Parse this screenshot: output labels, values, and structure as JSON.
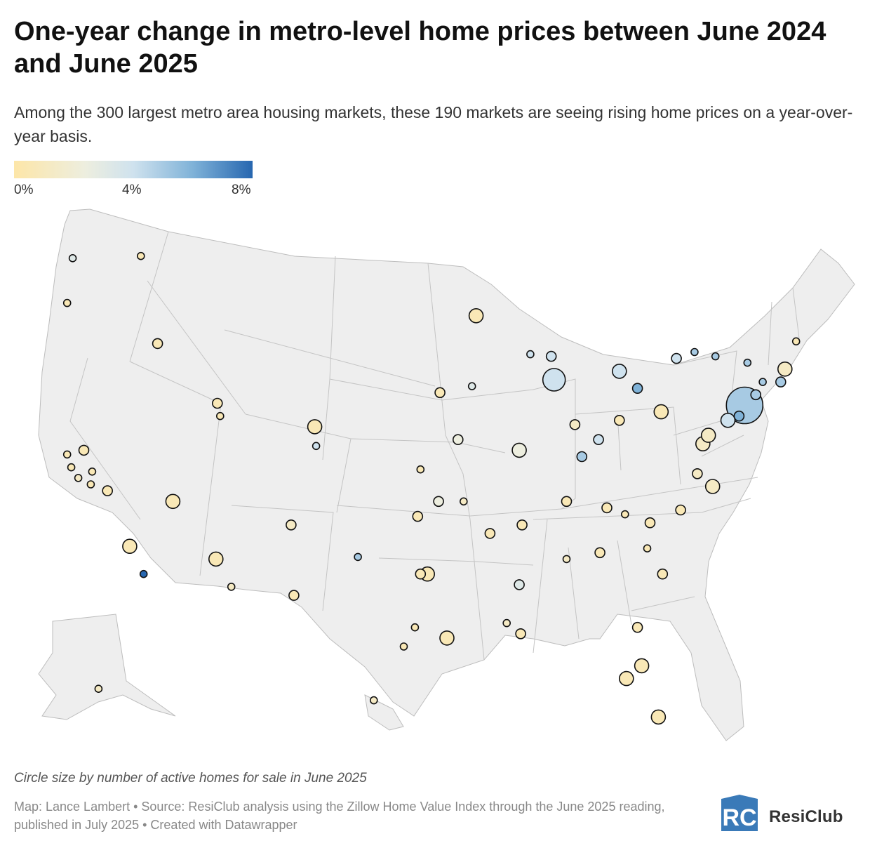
{
  "title": "One-year change in metro-level home prices between June 2024 and June 2025",
  "subtitle": "Among the 300 largest metro area housing markets, these 190 markets are seeing rising home prices on a year-over-year basis.",
  "legend": {
    "labels": [
      "0%",
      "4%",
      "8%"
    ],
    "colors": [
      "#fde6a8",
      "#edeedf",
      "#cfe2ee",
      "#7fb2d8",
      "#2767b0"
    ]
  },
  "size_note": "Circle size by number of active homes for sale in June 2025",
  "credit": "Map: Lance Lambert • Source: ResiClub analysis using the Zillow Home Value Index through the June 2025 reading, published in July 2025 • Created with Datawrapper",
  "brand": {
    "name": "ResiClub",
    "logo_letters": "RC"
  },
  "colors": {
    "land": "#eeeeee",
    "border": "#bdbdbd",
    "stroke": "#111111"
  },
  "map_data": {
    "circles": [
      {
        "lon": -122.4,
        "lat": 37.8,
        "size": "s",
        "change": 0.5
      },
      {
        "lon": -121.9,
        "lat": 37.3,
        "size": "s",
        "change": 1
      },
      {
        "lon": -121.5,
        "lat": 38.6,
        "size": "m",
        "change": 0.5
      },
      {
        "lon": -122.7,
        "lat": 38.4,
        "size": "s",
        "change": 0.5
      },
      {
        "lon": -120.9,
        "lat": 37.6,
        "size": "s",
        "change": 0.5
      },
      {
        "lon": -121.0,
        "lat": 37.0,
        "size": "s",
        "change": 0.5
      },
      {
        "lon": -119.8,
        "lat": 36.7,
        "size": "m",
        "change": 0.5
      },
      {
        "lon": -118.2,
        "lat": 34.1,
        "size": "l",
        "change": 0.5
      },
      {
        "lon": -117.2,
        "lat": 32.8,
        "size": "s",
        "change": 8
      },
      {
        "lon": -122.3,
        "lat": 47.6,
        "size": "s",
        "change": 3
      },
      {
        "lon": -122.7,
        "lat": 45.5,
        "size": "s",
        "change": 0.5
      },
      {
        "lon": -117.4,
        "lat": 47.7,
        "size": "s",
        "change": 0.5
      },
      {
        "lon": -116.2,
        "lat": 43.6,
        "size": "m",
        "change": 0.5
      },
      {
        "lon": -111.9,
        "lat": 40.8,
        "size": "m",
        "change": 0.5
      },
      {
        "lon": -111.7,
        "lat": 40.2,
        "size": "s",
        "change": 0.5
      },
      {
        "lon": -115.1,
        "lat": 36.2,
        "size": "l",
        "change": 0.5
      },
      {
        "lon": -112.0,
        "lat": 33.5,
        "size": "l",
        "change": 0.5
      },
      {
        "lon": -110.9,
        "lat": 32.2,
        "size": "s",
        "change": 1
      },
      {
        "lon": -106.6,
        "lat": 35.1,
        "size": "m",
        "change": 1
      },
      {
        "lon": -104.8,
        "lat": 38.8,
        "size": "s",
        "change": 4
      },
      {
        "lon": -104.9,
        "lat": 39.7,
        "size": "l",
        "change": 0.5
      },
      {
        "lon": -106.4,
        "lat": 31.8,
        "size": "m",
        "change": 0.5
      },
      {
        "lon": -97.7,
        "lat": 30.3,
        "size": "s",
        "change": 0.5
      },
      {
        "lon": -98.5,
        "lat": 29.4,
        "size": "s",
        "change": 0.5
      },
      {
        "lon": -96.8,
        "lat": 32.8,
        "size": "l",
        "change": 0.5
      },
      {
        "lon": -97.3,
        "lat": 32.8,
        "size": "m",
        "change": 0.5
      },
      {
        "lon": -95.4,
        "lat": 29.8,
        "size": "l",
        "change": 0.5
      },
      {
        "lon": -101.8,
        "lat": 33.6,
        "size": "s",
        "change": 5
      },
      {
        "lon": -97.5,
        "lat": 35.5,
        "size": "m",
        "change": 0.5
      },
      {
        "lon": -96.0,
        "lat": 36.2,
        "size": "m",
        "change": 2
      },
      {
        "lon": -97.3,
        "lat": 37.7,
        "size": "s",
        "change": 0.5
      },
      {
        "lon": -94.6,
        "lat": 39.1,
        "size": "m",
        "change": 2
      },
      {
        "lon": -95.9,
        "lat": 41.3,
        "size": "m",
        "change": 0.5
      },
      {
        "lon": -93.6,
        "lat": 41.6,
        "size": "s",
        "change": 3
      },
      {
        "lon": -93.3,
        "lat": 44.9,
        "size": "l",
        "change": 0.5
      },
      {
        "lon": -90.2,
        "lat": 38.6,
        "size": "l",
        "change": 2
      },
      {
        "lon": -87.7,
        "lat": 41.9,
        "size": "xl",
        "change": 4
      },
      {
        "lon": -87.9,
        "lat": 43.0,
        "size": "m",
        "change": 4
      },
      {
        "lon": -89.4,
        "lat": 43.1,
        "size": "s",
        "change": 4
      },
      {
        "lon": -86.2,
        "lat": 39.8,
        "size": "m",
        "change": 1
      },
      {
        "lon": -84.5,
        "lat": 39.1,
        "size": "m",
        "change": 4
      },
      {
        "lon": -83.0,
        "lat": 40.0,
        "size": "m",
        "change": 0.5
      },
      {
        "lon": -83.0,
        "lat": 42.3,
        "size": "l",
        "change": 4
      },
      {
        "lon": -81.7,
        "lat": 41.5,
        "size": "m",
        "change": 6
      },
      {
        "lon": -80.0,
        "lat": 40.4,
        "size": "l",
        "change": 0.5
      },
      {
        "lon": -85.7,
        "lat": 38.3,
        "size": "m",
        "change": 5
      },
      {
        "lon": -86.8,
        "lat": 36.2,
        "size": "m",
        "change": 0.5
      },
      {
        "lon": -84.4,
        "lat": 33.8,
        "size": "m",
        "change": 0.5
      },
      {
        "lon": -80.8,
        "lat": 35.2,
        "size": "m",
        "change": 0.5
      },
      {
        "lon": -78.6,
        "lat": 35.8,
        "size": "m",
        "change": 0.5
      },
      {
        "lon": -77.4,
        "lat": 37.5,
        "size": "m",
        "change": 1
      },
      {
        "lon": -76.3,
        "lat": 36.9,
        "size": "l",
        "change": 1
      },
      {
        "lon": -77.0,
        "lat": 38.9,
        "size": "l",
        "change": 1
      },
      {
        "lon": -76.6,
        "lat": 39.3,
        "size": "l",
        "change": 1
      },
      {
        "lon": -75.2,
        "lat": 40.0,
        "size": "l",
        "change": 4
      },
      {
        "lon": -74.0,
        "lat": 40.7,
        "size": "xxl",
        "change": 5
      },
      {
        "lon": -74.4,
        "lat": 40.2,
        "size": "m",
        "change": 6
      },
      {
        "lon": -73.2,
        "lat": 41.2,
        "size": "m",
        "change": 5
      },
      {
        "lon": -72.7,
        "lat": 41.8,
        "size": "s",
        "change": 5
      },
      {
        "lon": -71.4,
        "lat": 41.8,
        "size": "m",
        "change": 5
      },
      {
        "lon": -71.1,
        "lat": 42.4,
        "size": "l",
        "change": 1
      },
      {
        "lon": -70.3,
        "lat": 43.7,
        "size": "s",
        "change": 0.5
      },
      {
        "lon": -73.8,
        "lat": 42.7,
        "size": "s",
        "change": 5
      },
      {
        "lon": -76.1,
        "lat": 43.0,
        "size": "s",
        "change": 5
      },
      {
        "lon": -77.6,
        "lat": 43.2,
        "size": "s",
        "change": 5
      },
      {
        "lon": -78.9,
        "lat": 42.9,
        "size": "m",
        "change": 4
      },
      {
        "lon": -82.5,
        "lat": 27.9,
        "size": "l",
        "change": 0.5
      },
      {
        "lon": -81.4,
        "lat": 28.5,
        "size": "l",
        "change": 0.5
      },
      {
        "lon": -80.2,
        "lat": 26.1,
        "size": "l",
        "change": 0.5
      },
      {
        "lon": -81.7,
        "lat": 30.3,
        "size": "m",
        "change": 0.5
      },
      {
        "lon": -90.1,
        "lat": 30.0,
        "size": "m",
        "change": 0.5
      },
      {
        "lon": -91.1,
        "lat": 30.5,
        "size": "s",
        "change": 1
      },
      {
        "lon": -90.2,
        "lat": 32.3,
        "size": "m",
        "change": 3
      },
      {
        "lon": -86.8,
        "lat": 33.5,
        "size": "s",
        "change": 1
      },
      {
        "lon": -92.3,
        "lat": 34.7,
        "size": "m",
        "change": 0.5
      },
      {
        "lon": -94.2,
        "lat": 36.2,
        "size": "s",
        "change": 1
      },
      {
        "lon": -90.0,
        "lat": 35.1,
        "size": "m",
        "change": 0.5
      },
      {
        "lon": -83.9,
        "lat": 35.9,
        "size": "m",
        "change": 0.5
      },
      {
        "lon": -82.6,
        "lat": 35.6,
        "size": "s",
        "change": 0.5
      },
      {
        "lon": -81.0,
        "lat": 34.0,
        "size": "s",
        "change": 0.5
      },
      {
        "lon": -79.9,
        "lat": 32.8,
        "size": "m",
        "change": 0.5
      },
      {
        "lon": -149.9,
        "lat": 61.2,
        "size": "s",
        "change": 1
      },
      {
        "lon": -157.9,
        "lat": 21.3,
        "size": "s",
        "change": 1
      }
    ]
  }
}
